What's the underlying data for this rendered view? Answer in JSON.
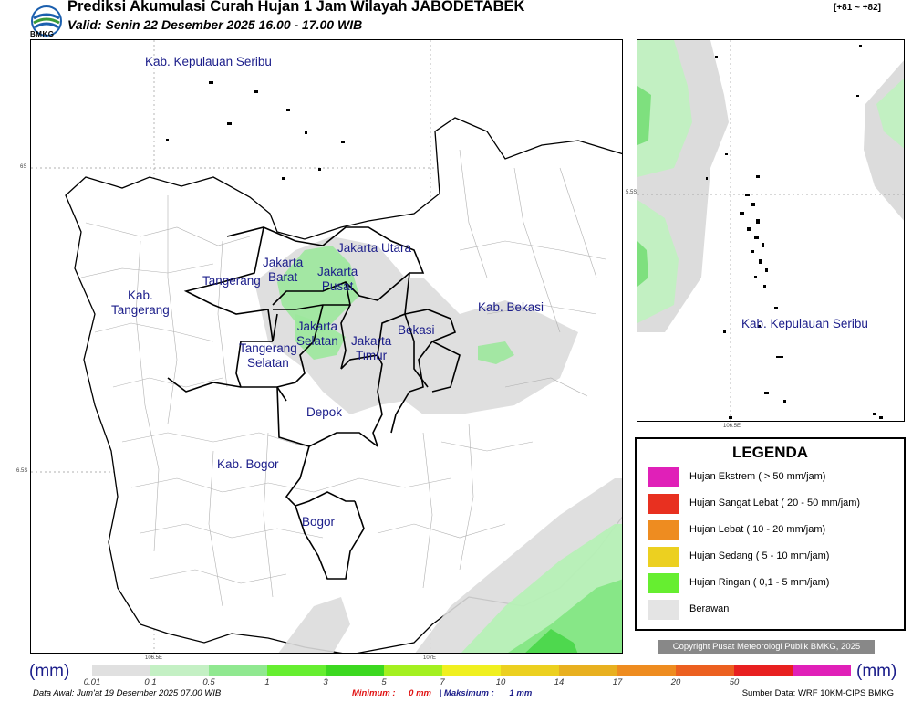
{
  "header": {
    "logo_text": "BMKG",
    "title": "Prediksi Akumulasi Curah Hujan 1 Jam Wilayah JABODETABEK",
    "subtitle": "Valid: Senin 22 Desember 2025 16.00 - 17.00 WIB",
    "range_tag": "[+81 ~ +82]"
  },
  "map": {
    "labels": {
      "kep_seribu": "Kab. Kepulauan Seribu",
      "jakarta_utara": "Jakarta Utara",
      "jakarta_barat": "Jakarta\nBarat",
      "jakarta_pusat": "Jakarta\nPusat",
      "tangerang": "Tangerang",
      "kab_tangerang": "Kab.\nTangerang",
      "kab_bekasi": "Kab. Bekasi",
      "jakarta_selatan": "Jakarta\nSelatan",
      "bekasi": "Bekasi",
      "jakarta_timur": "Jakarta\nTimur",
      "tangerang_selatan": "Tangerang\nSelatan",
      "depok": "Depok",
      "kab_bogor": "Kab. Bogor",
      "bogor": "Bogor"
    },
    "lat_ticks": [
      "6S",
      "6.5S"
    ],
    "lon_ticks": [
      "106.5E",
      "107E"
    ]
  },
  "inset": {
    "label": "Kab. Kepulauan Seribu",
    "lat_tick": "5.5S",
    "lon_tick": "106.5E"
  },
  "legend": {
    "title": "LEGENDA",
    "items": [
      {
        "label": "Hujan Ekstrem ( > 50 mm/jam)",
        "color": "#e020b8"
      },
      {
        "label": "Hujan Sangat Lebat ( 20 - 50 mm/jam)",
        "color": "#e83020"
      },
      {
        "label": "Hujan Lebat ( 10 - 20 mm/jam)",
        "color": "#ee8c20"
      },
      {
        "label": "Hujan Sedang ( 5 - 10 mm/jam)",
        "color": "#ecd020"
      },
      {
        "label": "Hujan Ringan ( 0,1 - 5 mm/jam)",
        "color": "#66ee30"
      },
      {
        "label": "Berawan",
        "color": "#e4e4e4"
      }
    ]
  },
  "copyright": "Copyright Pusat Meteorologi Publik BMKG, 2025",
  "scale": {
    "unit": "(mm)",
    "colors": [
      "#e0e0e0",
      "#c4f0c4",
      "#90e890",
      "#66ee30",
      "#3cd820",
      "#a4f020",
      "#f0f020",
      "#ecd020",
      "#e8b020",
      "#ee8c20",
      "#ec6020",
      "#e82020",
      "#e020b8"
    ],
    "ticks": [
      "0.01",
      "0.1",
      "0.5",
      "1",
      "3",
      "5",
      "7",
      "10",
      "14",
      "17",
      "20",
      "50"
    ]
  },
  "footer": {
    "data_awal": "Data Awal: Jum'at 19 Desember 2025 07.00 WIB",
    "min_label": "Minimum :",
    "min_value": "0 mm",
    "max_label": "| Maksimum :",
    "max_value": "1 mm",
    "source": "Sumber Data: WRF 10KM-CIPS BMKG"
  }
}
